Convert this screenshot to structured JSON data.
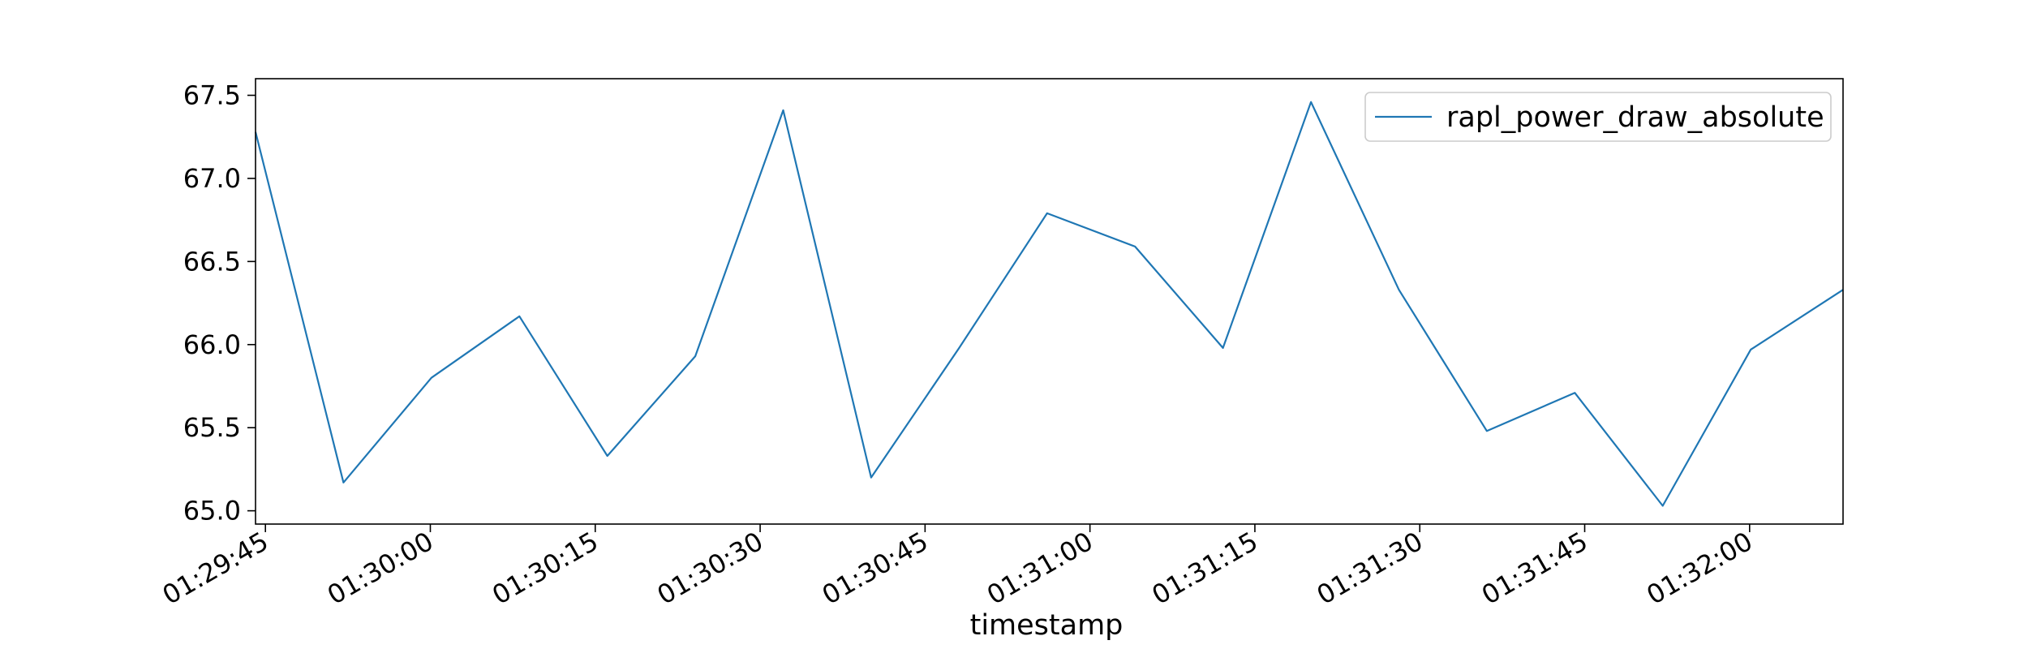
{
  "chart_data": {
    "type": "line",
    "title": "",
    "xlabel": "timestamp",
    "ylabel": "",
    "x_tick_labels": [
      "01:29:45",
      "01:30:00",
      "01:30:15",
      "01:30:30",
      "01:30:45",
      "01:31:00",
      "01:31:15",
      "01:31:30",
      "01:31:45",
      "01:32:00"
    ],
    "x_tick_seconds": [
      105,
      120,
      135,
      150,
      165,
      180,
      195,
      210,
      225,
      240
    ],
    "y_ticks": [
      65.0,
      65.5,
      66.0,
      66.5,
      67.0,
      67.5
    ],
    "y_tick_labels": [
      "65.0",
      "65.5",
      "66.0",
      "66.5",
      "67.0",
      "67.5"
    ],
    "xlim_seconds": [
      104.1,
      248.5
    ],
    "ylim": [
      64.92,
      67.6
    ],
    "grid": false,
    "legend": {
      "position": "upper-right"
    },
    "series": [
      {
        "name": "rapl_power_draw_absolute",
        "color": "#1f77b4",
        "x_seconds": [
          104.1,
          112.1,
          120.1,
          128.1,
          136.1,
          144.1,
          152.1,
          160.1,
          168.1,
          176.1,
          184.1,
          192.1,
          200.1,
          208.1,
          216.1,
          224.1,
          232.1,
          240.1,
          248.5
        ],
        "values": [
          67.28,
          65.17,
          65.8,
          66.17,
          65.33,
          65.93,
          67.41,
          65.2,
          65.98,
          66.79,
          66.59,
          65.98,
          67.46,
          66.33,
          65.48,
          65.71,
          65.03,
          65.97,
          66.33
        ]
      }
    ]
  }
}
